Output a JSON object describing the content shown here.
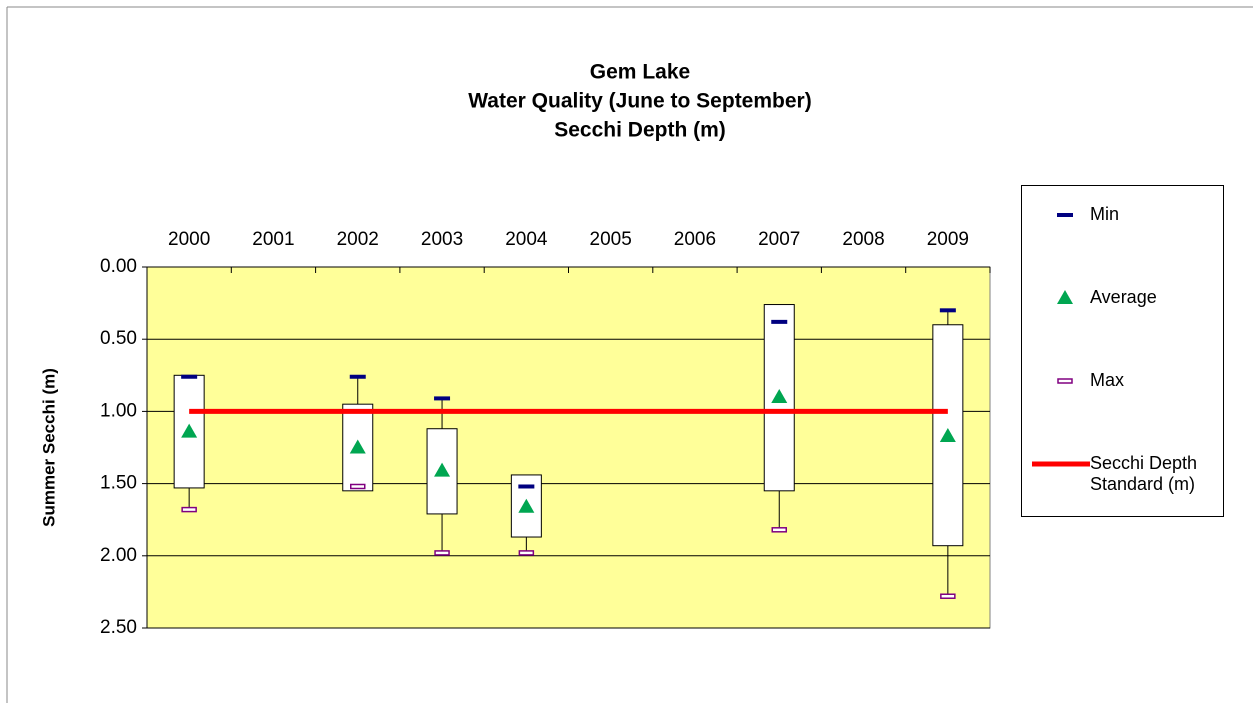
{
  "chart_data": {
    "type": "box",
    "title": [
      "Gem Lake",
      "Water Quality (June to September)",
      "Secchi Depth (m)"
    ],
    "y_label": "Summer Secchi (m)",
    "categories": [
      "2000",
      "2001",
      "2002",
      "2003",
      "2004",
      "2005",
      "2006",
      "2007",
      "2008",
      "2009"
    ],
    "box_low": [
      0.75,
      null,
      0.95,
      1.12,
      1.44,
      null,
      null,
      0.26,
      null,
      0.4
    ],
    "box_high": [
      1.53,
      null,
      1.55,
      1.71,
      1.87,
      null,
      null,
      1.55,
      null,
      1.93
    ],
    "series": [
      {
        "name": "Min",
        "color": "#000080",
        "marker": "dash",
        "values": [
          0.76,
          null,
          0.76,
          0.91,
          1.52,
          null,
          null,
          0.38,
          null,
          0.3
        ]
      },
      {
        "name": "Average",
        "color": "#00a651",
        "marker": "triangle",
        "values": [
          1.14,
          null,
          1.25,
          1.41,
          1.66,
          null,
          null,
          0.9,
          null,
          1.17
        ]
      },
      {
        "name": "Max",
        "color": "#800080",
        "marker": "hollow-dash",
        "values": [
          1.68,
          null,
          1.52,
          1.98,
          1.98,
          null,
          null,
          1.82,
          null,
          2.28
        ]
      }
    ],
    "standard": {
      "name": "Secchi Depth Standard (m)",
      "color": "#ff0000",
      "value": 1.0
    },
    "ylim": [
      0,
      2.5
    ],
    "y_reversed": true,
    "yticks": [
      {
        "value": 0,
        "label": "0.00"
      },
      {
        "value": 0.5,
        "label": "0.50"
      },
      {
        "value": 1.0,
        "label": "1.00"
      },
      {
        "value": 1.5,
        "label": "1.50"
      },
      {
        "value": 2.0,
        "label": "2.00"
      },
      {
        "value": 2.5,
        "label": "2.50"
      }
    ],
    "grid": true,
    "plot_color": "#ffff99"
  }
}
